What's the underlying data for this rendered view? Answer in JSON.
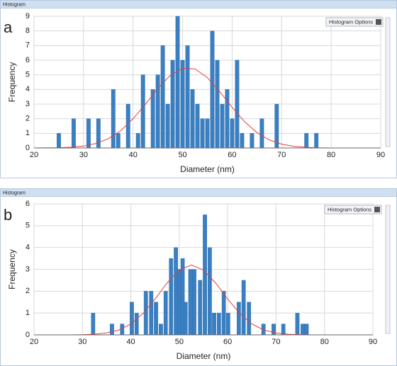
{
  "chart_data": [
    {
      "type": "bar",
      "window_title": "Histogram",
      "panel_label": "a",
      "options_button": "Histogram Options",
      "xlabel": "Diameter (nm)",
      "ylabel": "Frequency",
      "xlim": [
        20,
        90
      ],
      "xticks": [
        20,
        30,
        40,
        50,
        60,
        70,
        80,
        90
      ],
      "ylim": [
        0,
        9
      ],
      "yticks": [
        0,
        1,
        2,
        3,
        4,
        5,
        6,
        7,
        8,
        9
      ],
      "grid": true,
      "color": "#3a7fc1",
      "x": [
        25,
        28,
        31,
        33,
        36,
        37,
        39,
        41,
        42,
        44,
        45,
        46,
        47,
        48,
        49,
        50,
        51,
        52,
        53,
        54,
        55,
        56,
        57,
        58,
        59,
        60,
        61,
        62,
        64,
        66,
        69,
        75,
        77
      ],
      "values": [
        1,
        2,
        2,
        2,
        4,
        1,
        3,
        1,
        5,
        4,
        5,
        7,
        3,
        6,
        9,
        6,
        7,
        4,
        3,
        2,
        2,
        8,
        6,
        3,
        4,
        2,
        6,
        1,
        1,
        2,
        3,
        1,
        1
      ],
      "fit": {
        "color": "#e04040",
        "x": [
          20,
          22.5,
          25,
          27.5,
          30,
          32.5,
          35,
          37.5,
          40,
          42.5,
          45,
          47.5,
          50,
          52.5,
          55,
          57.5,
          60,
          62.5,
          65,
          67.5,
          70,
          72.5,
          75,
          77.5,
          80,
          82.5,
          85,
          87.5,
          90
        ],
        "values": [
          0,
          0.01,
          0.02,
          0.05,
          0.13,
          0.31,
          0.63,
          1.18,
          2.0,
          2.99,
          4.07,
          4.96,
          5.45,
          5.4,
          4.81,
          3.85,
          2.78,
          1.8,
          1.05,
          0.55,
          0.26,
          0.11,
          0.04,
          0.01,
          0,
          0,
          0,
          0,
          0
        ]
      }
    },
    {
      "type": "bar",
      "window_title": "Histogram",
      "panel_label": "b",
      "options_button": "Histogram Options",
      "xlabel": "Diameter (nm)",
      "ylabel": "Frequency",
      "xlim": [
        20,
        90
      ],
      "xticks": [
        20,
        30,
        40,
        50,
        60,
        70,
        80,
        90
      ],
      "ylim": [
        0,
        6
      ],
      "yticks": [
        0,
        1,
        2,
        3,
        4,
        5,
        6
      ],
      "grid": true,
      "color": "#3a7fc1",
      "x": [
        32.2,
        36.1,
        38.2,
        40.2,
        41.2,
        43.1,
        44.2,
        45.2,
        46.2,
        47.2,
        48.3,
        49.3,
        50.0,
        50.7,
        51.3,
        52.3,
        53.1,
        54.3,
        55.3,
        56.3,
        57.2,
        58.2,
        59.2,
        60.1,
        62.3,
        63.3,
        64.4,
        67.4,
        69.5,
        71.5,
        74.4,
        75.5,
        76.3
      ],
      "values": [
        1,
        0.5,
        0.5,
        1.5,
        1,
        2,
        2,
        1.5,
        0.5,
        2,
        3.5,
        4,
        3,
        3.5,
        1.5,
        3,
        3,
        2.5,
        5.5,
        4,
        1,
        1,
        2,
        1,
        1.5,
        2.5,
        1.5,
        0.5,
        0.5,
        0.5,
        1,
        0.5,
        0.5
      ],
      "fit": {
        "color": "#e04040",
        "x": [
          20,
          22.5,
          25,
          27.5,
          30,
          32.5,
          35,
          37.5,
          40,
          42.5,
          45,
          47.5,
          50,
          52.5,
          55,
          57.5,
          60,
          62.5,
          65,
          67.5,
          70,
          72.5,
          75,
          77.5,
          80,
          82.5,
          85,
          87.5,
          90
        ],
        "values": [
          0,
          0,
          0,
          0,
          0.01,
          0.03,
          0.09,
          0.22,
          0.5,
          0.98,
          1.64,
          2.38,
          2.97,
          3.2,
          2.97,
          2.38,
          1.64,
          0.98,
          0.5,
          0.22,
          0.09,
          0.03,
          0.01,
          0,
          0,
          0,
          0,
          0,
          0
        ]
      }
    }
  ]
}
